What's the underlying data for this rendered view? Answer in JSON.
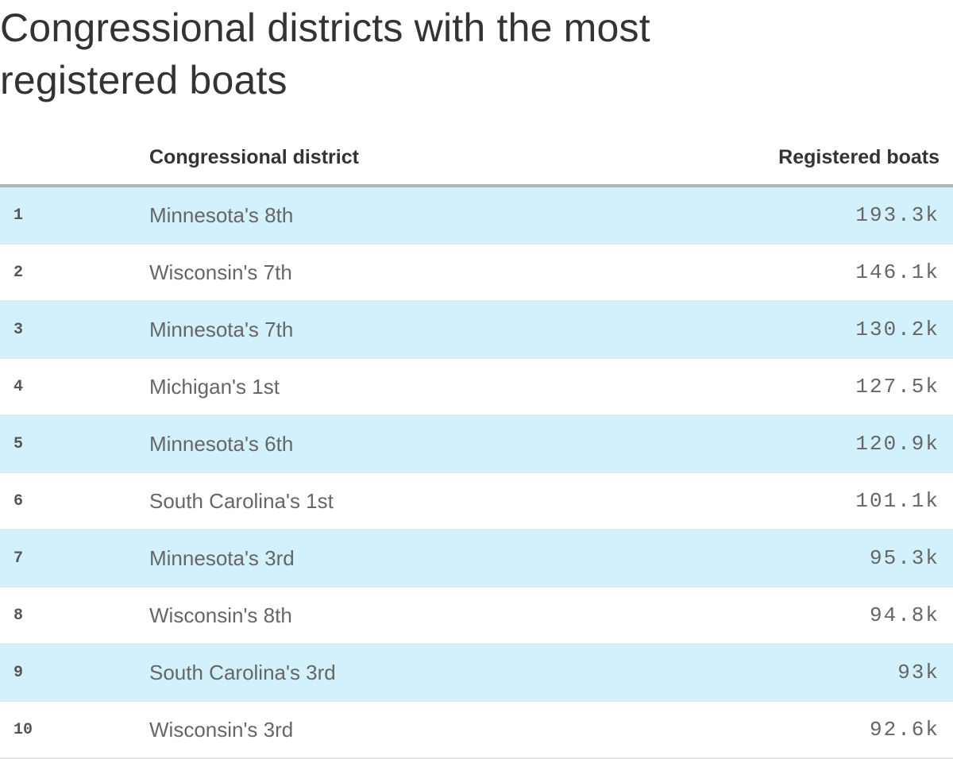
{
  "title": "Congressional districts with the most registered boats",
  "title_line1": "Congressional districts with the most",
  "title_line2": "registered boats",
  "columns": {
    "rank": "",
    "district": "Congressional district",
    "value": "Registered boats"
  },
  "rows": [
    {
      "rank": "1",
      "district": "Minnesota's 8th",
      "value": "193.3k"
    },
    {
      "rank": "2",
      "district": "Wisconsin's 7th",
      "value": "146.1k"
    },
    {
      "rank": "3",
      "district": "Minnesota's 7th",
      "value": "130.2k"
    },
    {
      "rank": "4",
      "district": "Michigan's 1st",
      "value": "127.5k"
    },
    {
      "rank": "5",
      "district": "Minnesota's 6th",
      "value": "120.9k"
    },
    {
      "rank": "6",
      "district": "South Carolina's 1st",
      "value": "101.1k"
    },
    {
      "rank": "7",
      "district": "Minnesota's 3rd",
      "value": "95.3k"
    },
    {
      "rank": "8",
      "district": "Wisconsin's 8th",
      "value": "94.8k"
    },
    {
      "rank": "9",
      "district": "South Carolina's 3rd",
      "value": "93k"
    },
    {
      "rank": "10",
      "district": "Wisconsin's 3rd",
      "value": "92.6k"
    }
  ],
  "colors": {
    "stripe": "#d2f1fc",
    "header_rule": "#b3b3b3",
    "row_rule": "#e6e6e6",
    "text": "#333333",
    "muted": "#666666"
  },
  "chart_data": {
    "type": "table",
    "title": "Congressional districts with the most registered boats",
    "columns": [
      "",
      "Congressional district",
      "Registered boats"
    ],
    "categories": [
      "Minnesota's 8th",
      "Wisconsin's 7th",
      "Minnesota's 7th",
      "Michigan's 1st",
      "Minnesota's 6th",
      "South Carolina's 1st",
      "Minnesota's 3rd",
      "Wisconsin's 8th",
      "South Carolina's 3rd",
      "Wisconsin's 3rd"
    ],
    "values": [
      193300,
      146100,
      130200,
      127500,
      120900,
      101100,
      95300,
      94800,
      93000,
      92600
    ],
    "value_labels": [
      "193.3k",
      "146.1k",
      "130.2k",
      "127.5k",
      "120.9k",
      "101.1k",
      "95.3k",
      "94.8k",
      "93k",
      "92.6k"
    ]
  }
}
